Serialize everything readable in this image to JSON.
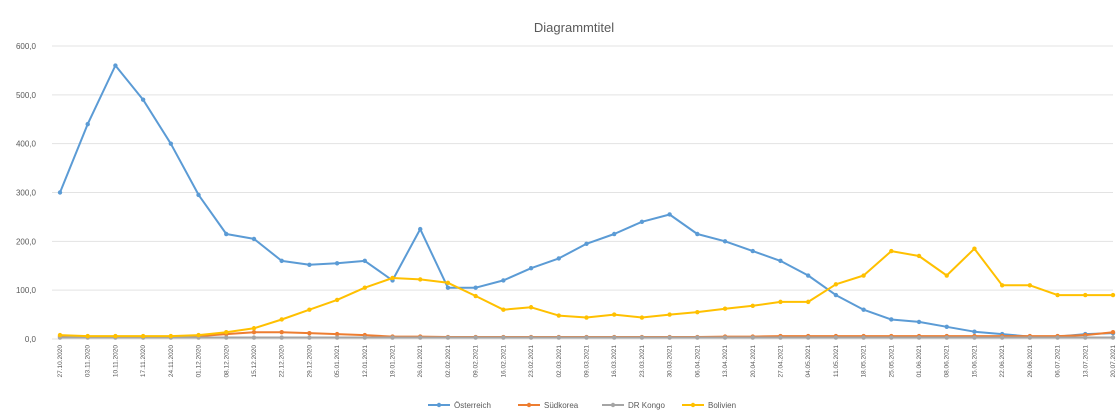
{
  "chart_data": {
    "type": "line",
    "title": "Diagrammtitel",
    "xlabel": "",
    "ylabel": "",
    "ylim": [
      0,
      600
    ],
    "yticks": [
      "0,0",
      "100,0",
      "200,0",
      "300,0",
      "400,0",
      "500,0",
      "600,0"
    ],
    "grid": true,
    "legend_position": "bottom",
    "categories": [
      "27.10.2020",
      "03.11.2020",
      "10.11.2020",
      "17.11.2020",
      "24.11.2020",
      "01.12.2020",
      "08.12.2020",
      "15.12.2020",
      "22.12.2020",
      "29.12.2020",
      "05.01.2021",
      "12.01.2021",
      "19.01.2021",
      "26.01.2021",
      "02.02.2021",
      "09.02.2021",
      "16.02.2021",
      "23.02.2021",
      "02.03.2021",
      "09.03.2021",
      "16.03.2021",
      "23.03.2021",
      "30.03.2021",
      "06.04.2021",
      "13.04.2021",
      "20.04.2021",
      "27.04.2021",
      "04.05.2021",
      "11.05.2021",
      "18.05.2021",
      "25.05.2021",
      "01.06.2021",
      "08.06.2021",
      "15.06.2021",
      "22.06.2021",
      "29.06.2021",
      "06.07.2021",
      "13.07.2021",
      "20.07.2021"
    ],
    "series": [
      {
        "name": "Österreich",
        "color": "#5b9bd5",
        "values": [
          300,
          440,
          560,
          490,
          400,
          295,
          215,
          205,
          160,
          152,
          155,
          160,
          120,
          225,
          105,
          105,
          120,
          145,
          165,
          195,
          215,
          240,
          255,
          215,
          200,
          180,
          160,
          130,
          90,
          60,
          40,
          35,
          25,
          15,
          10,
          5,
          5,
          10,
          12
        ]
      },
      {
        "name": "Südkorea",
        "color": "#ed7d31",
        "values": [
          5,
          4,
          4,
          4,
          4,
          6,
          10,
          14,
          14,
          12,
          10,
          8,
          5,
          5,
          4,
          4,
          4,
          4,
          4,
          4,
          4,
          4,
          4,
          4,
          5,
          5,
          6,
          6,
          6,
          6,
          6,
          6,
          6,
          6,
          6,
          6,
          6,
          8,
          14
        ]
      },
      {
        "name": "DR Kongo",
        "color": "#a5a5a5",
        "values": [
          3,
          3,
          3,
          3,
          3,
          3,
          3,
          3,
          3,
          3,
          3,
          3,
          3,
          3,
          3,
          3,
          3,
          3,
          3,
          3,
          3,
          3,
          3,
          3,
          3,
          3,
          3,
          3,
          3,
          3,
          3,
          3,
          3,
          3,
          3,
          3,
          3,
          3,
          3
        ]
      },
      {
        "name": "Bolivien",
        "color": "#ffc000",
        "values": [
          8,
          6,
          6,
          6,
          6,
          8,
          14,
          22,
          40,
          60,
          80,
          105,
          125,
          122,
          115,
          88,
          60,
          65,
          48,
          44,
          50,
          44,
          50,
          55,
          62,
          68,
          76,
          76,
          112,
          130,
          180,
          170,
          130,
          185,
          110,
          110,
          90,
          90,
          90
        ]
      }
    ]
  }
}
